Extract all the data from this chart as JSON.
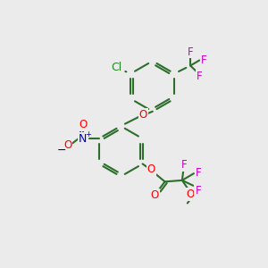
{
  "bg_color": "#ebebeb",
  "bond_color": "#2d6e2d",
  "bond_width": 1.5,
  "atom_colors": {
    "O": "#ff0000",
    "N": "#0000cc",
    "Cl": "#228822",
    "F": "#cc00cc",
    "minus": "#0000cc",
    "plus": "#0000cc"
  },
  "font_size": 8.5
}
